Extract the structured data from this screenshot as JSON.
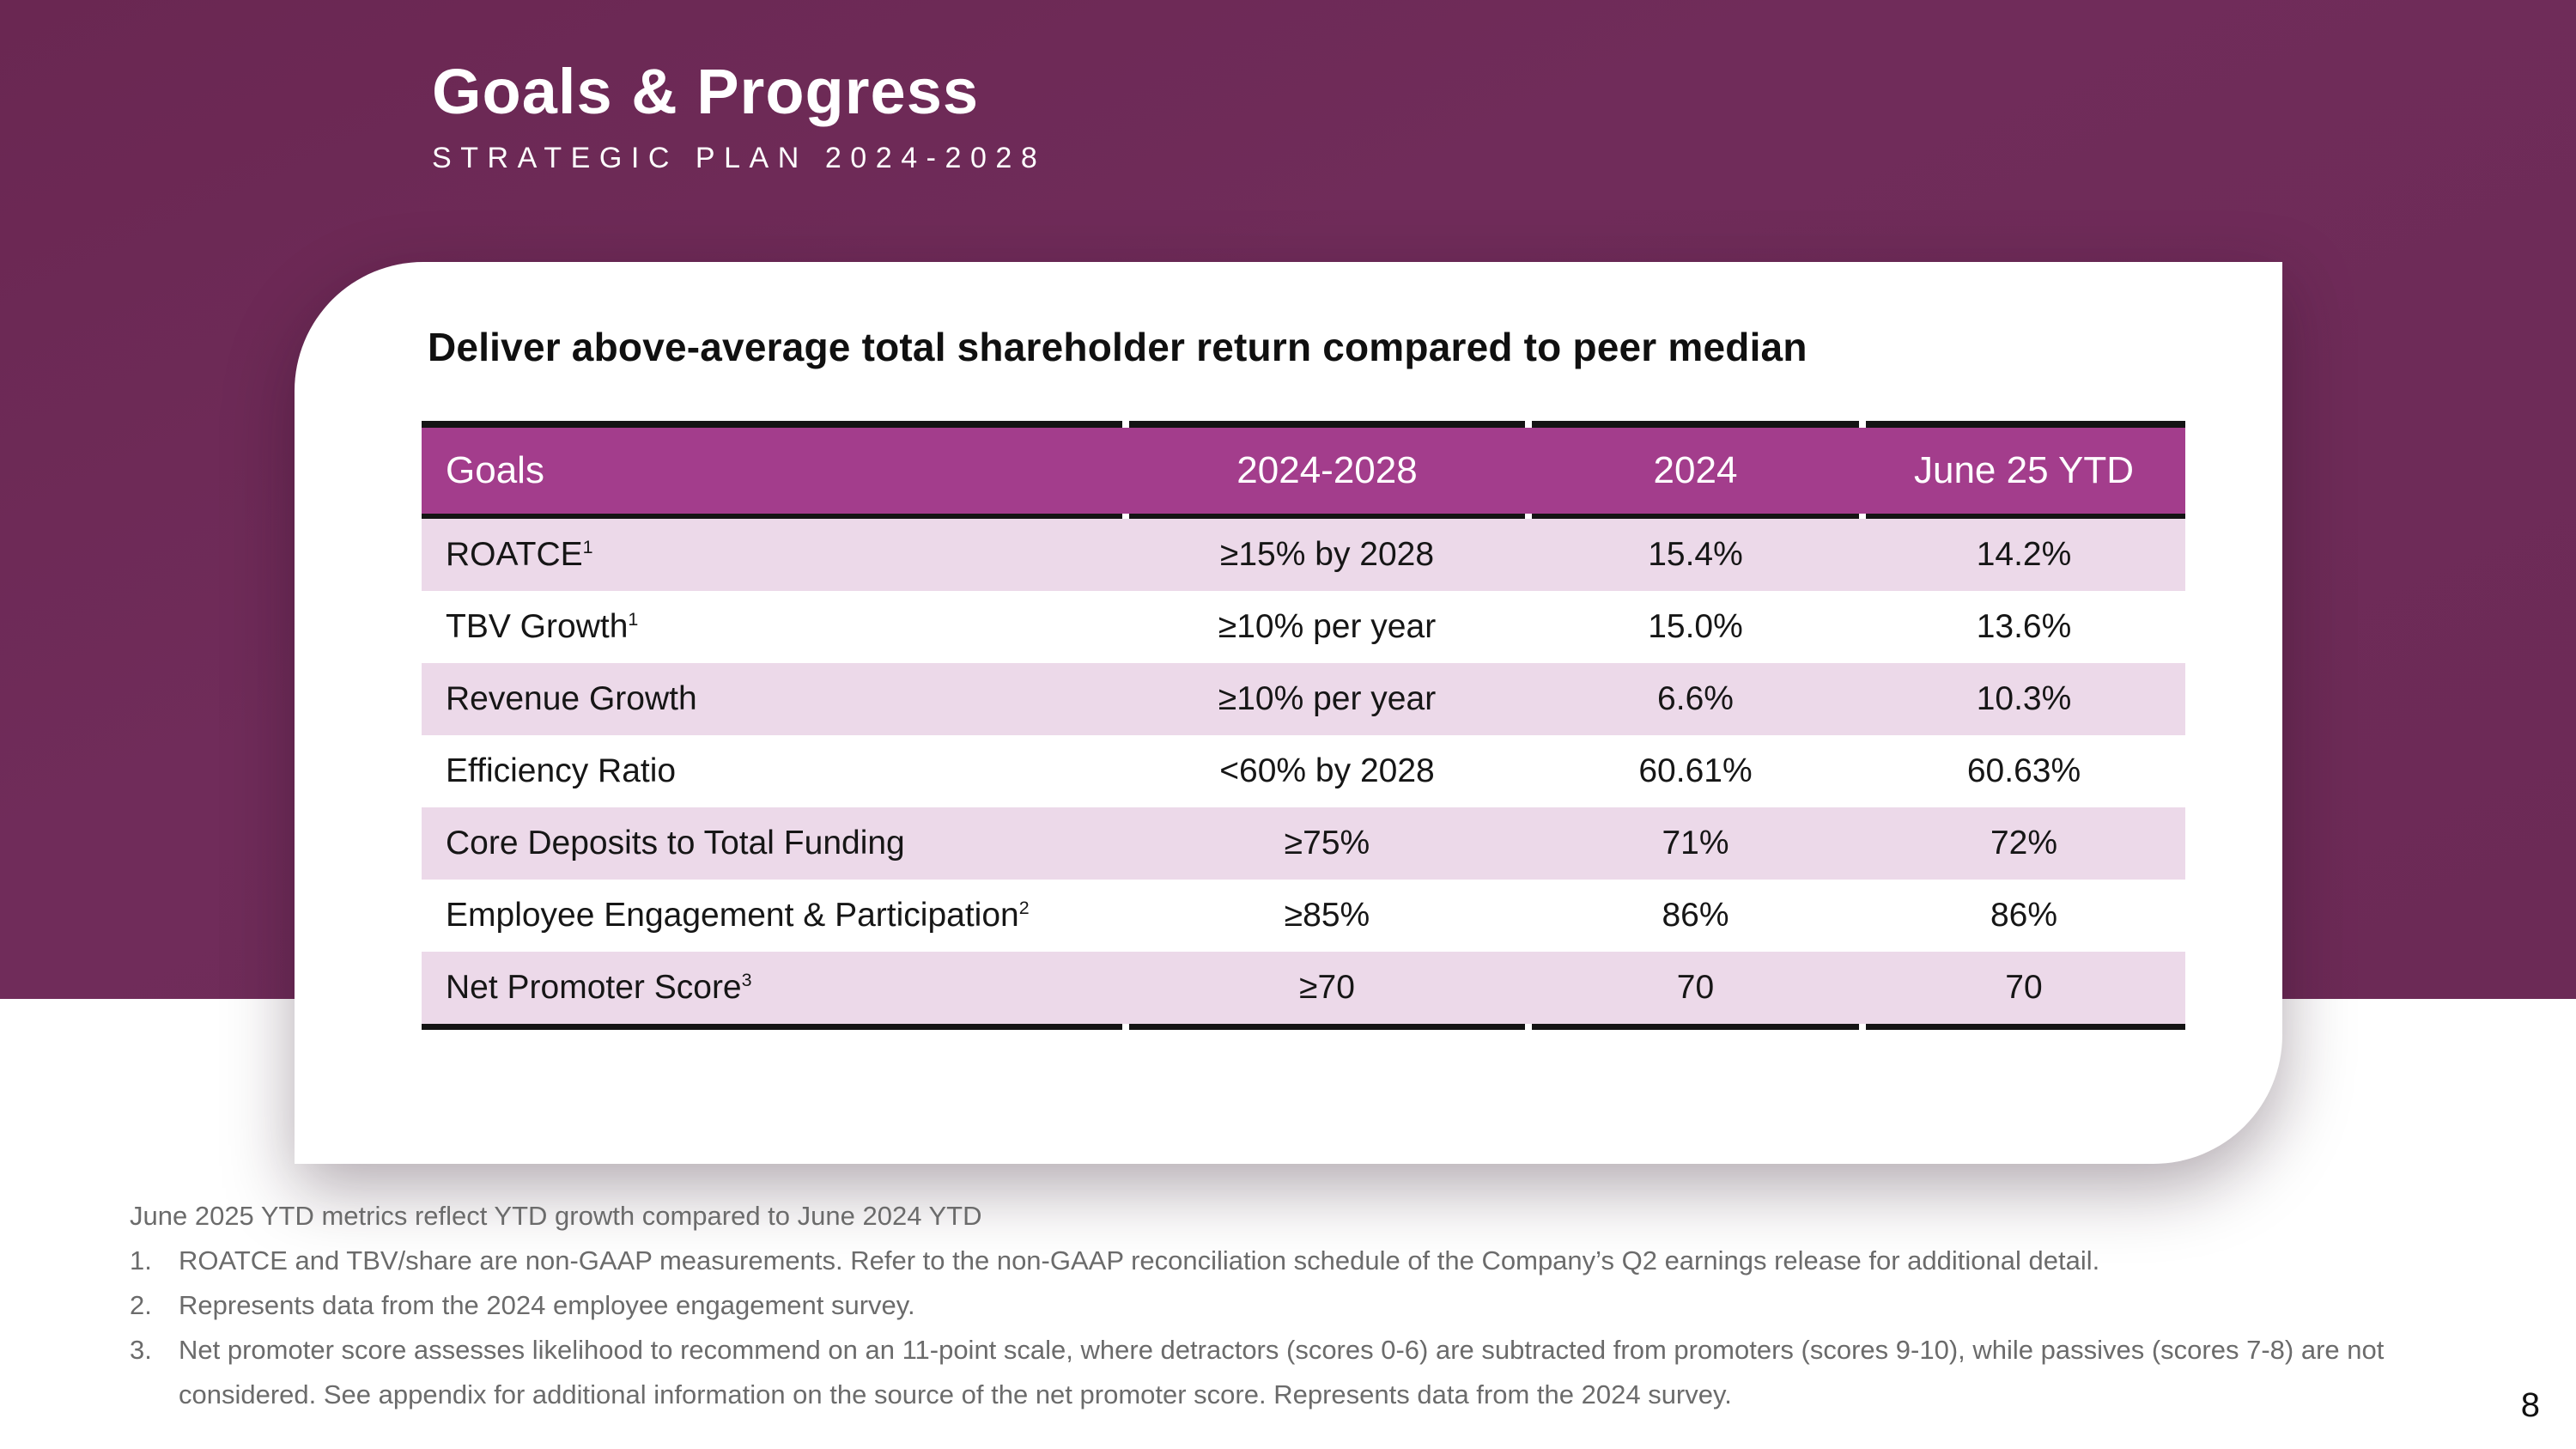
{
  "slide": {
    "title": "Goals & Progress",
    "subtitle": "STRATEGIC PLAN 2024-2028",
    "page_number": "8"
  },
  "card": {
    "heading": "Deliver above-average total shareholder return compared to peer median"
  },
  "table": {
    "columns": [
      "Goals",
      "2024-2028",
      "2024",
      "June 25 YTD"
    ],
    "rows": [
      {
        "goal": "ROATCE",
        "sup": "1",
        "target": "≥15% by 2028",
        "y2024": "15.4%",
        "june25": "14.2%"
      },
      {
        "goal": "TBV Growth",
        "sup": "1",
        "target": "≥10% per year",
        "y2024": "15.0%",
        "june25": "13.6%"
      },
      {
        "goal": "Revenue Growth",
        "sup": "",
        "target": "≥10% per year",
        "y2024": "6.6%",
        "june25": "10.3%"
      },
      {
        "goal": "Efficiency Ratio",
        "sup": "",
        "target": "<60% by 2028",
        "y2024": "60.61%",
        "june25": "60.63%"
      },
      {
        "goal": "Core Deposits to Total Funding",
        "sup": "",
        "target": "≥75%",
        "y2024": "71%",
        "june25": "72%"
      },
      {
        "goal": "Employee Engagement & Participation",
        "sup": "2",
        "target": "≥85%",
        "y2024": "86%",
        "june25": "86%"
      },
      {
        "goal": "Net Promoter Score",
        "sup": "3",
        "target": "≥70",
        "y2024": "70",
        "june25": "70"
      }
    ]
  },
  "footnotes": {
    "intro": "June 2025 YTD metrics reflect YTD growth compared to June 2024 YTD",
    "items": [
      {
        "num": "1.",
        "text": "ROATCE and TBV/share are non-GAAP measurements. Refer to the non-GAAP reconciliation schedule of the Company’s Q2 earnings release for additional detail."
      },
      {
        "num": "2.",
        "text": "Represents data from the 2024 employee engagement survey."
      },
      {
        "num": "3.",
        "text": "Net promoter score assesses likelihood to recommend on an 11-point scale, where detractors (scores 0-6) are subtracted from promoters (scores 9-10), while passives (scores 7-8) are not considered. See appendix for additional information on the source of the net promoter score. Represents data from the 2024 survey."
      }
    ]
  },
  "colors": {
    "banner_purple": "#6e2b57",
    "table_header_magenta": "#a33d8c",
    "row_pink": "#ecd9e9",
    "body_text": "#161616",
    "footnote_gray": "#6b6b6b"
  }
}
